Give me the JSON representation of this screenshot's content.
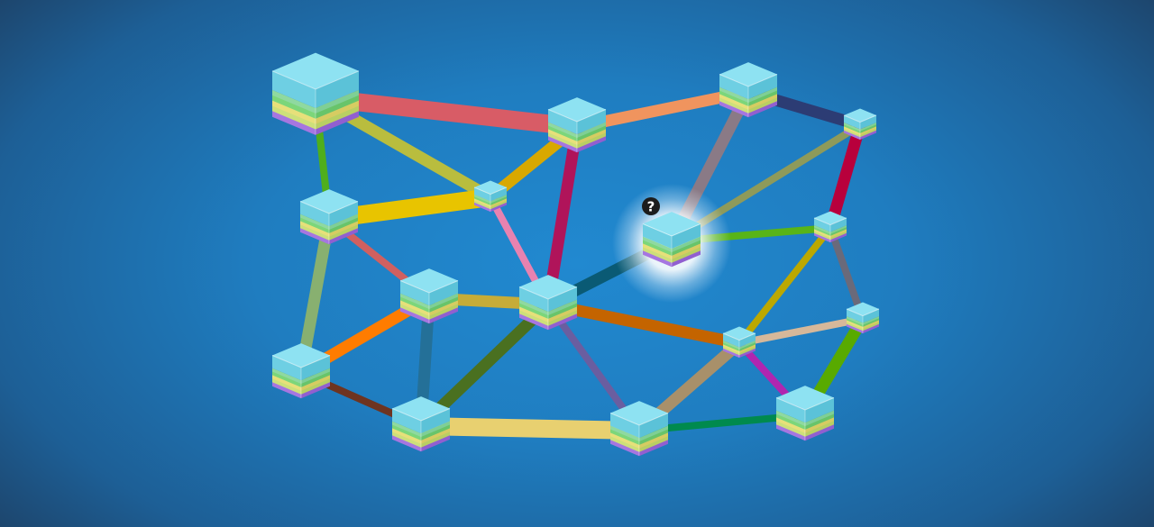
{
  "game": {
    "hint_glyph": "?",
    "hint_icon": "question-mark-icon",
    "selected_node": "n9",
    "cube_colors": {
      "top": "#8ee2f2",
      "left": "#6ecfe3",
      "right": "#5bc2d8",
      "bands_left": [
        "#8fd9a0",
        "#7cd67a",
        "#e7e07a",
        "#cde07a",
        "#a676e0"
      ],
      "bands_right": [
        "#7fcf95",
        "#68c46a",
        "#d6cc62",
        "#b9cf63",
        "#915fd0"
      ]
    }
  },
  "nodes": [
    {
      "id": "n1",
      "size": "large"
    },
    {
      "id": "n2",
      "size": "medium"
    },
    {
      "id": "n3",
      "size": "medium"
    },
    {
      "id": "n4",
      "size": "small"
    },
    {
      "id": "n5",
      "size": "small"
    },
    {
      "id": "n6",
      "size": "medium"
    },
    {
      "id": "n7",
      "size": "medium"
    },
    {
      "id": "n8",
      "size": "medium"
    },
    {
      "id": "n9",
      "size": "medium"
    },
    {
      "id": "n10",
      "size": "small"
    },
    {
      "id": "n11",
      "size": "small"
    },
    {
      "id": "n12",
      "size": "medium"
    },
    {
      "id": "n13",
      "size": "medium"
    },
    {
      "id": "n14",
      "size": "small"
    },
    {
      "id": "n15",
      "size": "medium"
    },
    {
      "id": "n16",
      "size": "medium"
    },
    {
      "id": "n17",
      "size": "medium"
    },
    {
      "id": "n18",
      "size": "small"
    }
  ],
  "links": [
    {
      "a": "n1",
      "b": "n2",
      "color": "#d85c66",
      "w": "thick"
    },
    {
      "a": "n1",
      "b": "n5",
      "color": "#b9bd3e",
      "w": "medium"
    },
    {
      "a": "n1",
      "b": "n6",
      "color": "#4fae1c",
      "w": "thin"
    },
    {
      "a": "n2",
      "b": "n3",
      "color": "#f0945e",
      "w": "medium"
    },
    {
      "a": "n2",
      "b": "n5",
      "color": "#d8a800",
      "w": "medium"
    },
    {
      "a": "n2",
      "b": "n8",
      "color": "#b0145a",
      "w": "medium"
    },
    {
      "a": "n3",
      "b": "n4",
      "color": "#2c3c74",
      "w": "medium"
    },
    {
      "a": "n3",
      "b": "n9",
      "color": "#8a7a86",
      "w": "medium"
    },
    {
      "a": "n4",
      "b": "n9",
      "color": "#8e9a5a",
      "w": "thin"
    },
    {
      "a": "n4",
      "b": "n10",
      "color": "#b8003c",
      "w": "medium"
    },
    {
      "a": "n5",
      "b": "n6",
      "color": "#e8c400",
      "w": "thick"
    },
    {
      "a": "n5",
      "b": "n8",
      "color": "#e882b0",
      "w": "thin"
    },
    {
      "a": "n6",
      "b": "n7",
      "color": "#d06060",
      "w": "thin"
    },
    {
      "a": "n6",
      "b": "n12",
      "color": "#88b070",
      "w": "medium"
    },
    {
      "a": "n7",
      "b": "n8",
      "color": "#c6ac38",
      "w": "medium"
    },
    {
      "a": "n7",
      "b": "n12",
      "color": "#ff7c00",
      "w": "medium"
    },
    {
      "a": "n7",
      "b": "n13",
      "color": "#247098",
      "w": "medium"
    },
    {
      "a": "n8",
      "b": "n9",
      "color": "#0a5a74",
      "w": "medium"
    },
    {
      "a": "n8",
      "b": "n13",
      "color": "#4a7020",
      "w": "medium"
    },
    {
      "a": "n8",
      "b": "n15",
      "color": "#6a5ea0",
      "w": "thin"
    },
    {
      "a": "n8",
      "b": "n14",
      "color": "#c46400",
      "w": "medium"
    },
    {
      "a": "n9",
      "b": "n10",
      "color": "#58b418",
      "w": "thin"
    },
    {
      "a": "n10",
      "b": "n14",
      "color": "#bca800",
      "w": "thin"
    },
    {
      "a": "n10",
      "b": "n11",
      "color": "#6a6a7a",
      "w": "thin"
    },
    {
      "a": "n11",
      "b": "n14",
      "color": "#d6b89a",
      "w": "thin"
    },
    {
      "a": "n11",
      "b": "n16",
      "color": "#58aa00",
      "w": "medium"
    },
    {
      "a": "n12",
      "b": "n13",
      "color": "#6e3420",
      "w": "thin"
    },
    {
      "a": "n13",
      "b": "n15",
      "color": "#e8d070",
      "w": "thick"
    },
    {
      "a": "n14",
      "b": "n15",
      "color": "#a8906a",
      "w": "medium"
    },
    {
      "a": "n14",
      "b": "n16",
      "color": "#b026b0",
      "w": "thin"
    },
    {
      "a": "n15",
      "b": "n16",
      "color": "#008a4e",
      "w": "thin"
    }
  ]
}
